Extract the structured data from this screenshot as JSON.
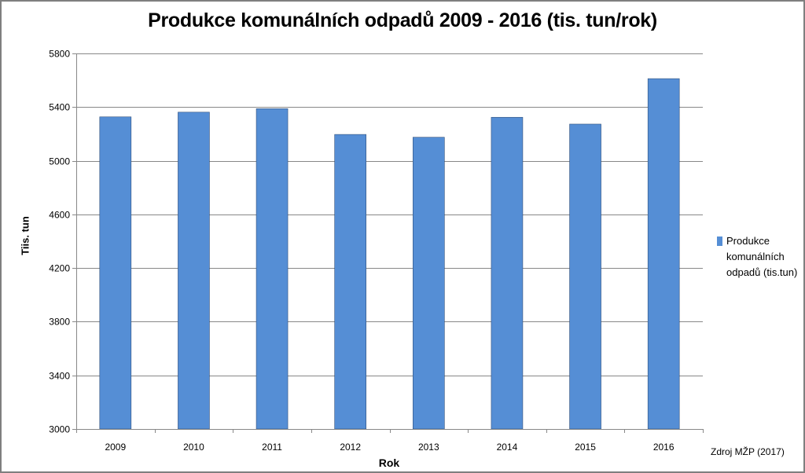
{
  "chart_data": {
    "type": "bar",
    "title": "Produkce komunálních odpadů 2009 - 2016 (tis. tun/rok)",
    "xlabel": "Rok",
    "ylabel": "Tiis. tun",
    "categories": [
      "2009",
      "2010",
      "2011",
      "2012",
      "2013",
      "2014",
      "2015",
      "2016"
    ],
    "series": [
      {
        "name": "Produkce komunálních odpadů (tis.tun)",
        "values": [
          5327,
          5362,
          5388,
          5196,
          5175,
          5324,
          5273,
          5612
        ],
        "color": "#558ed5"
      }
    ],
    "ylim": [
      3000,
      5800
    ],
    "yticks": [
      "3000",
      "3400",
      "3800",
      "4200",
      "4600",
      "5000",
      "5400",
      "5800"
    ],
    "grid": true,
    "legend_position": "right"
  },
  "source_note": "Zdroj MŽP (2017)"
}
